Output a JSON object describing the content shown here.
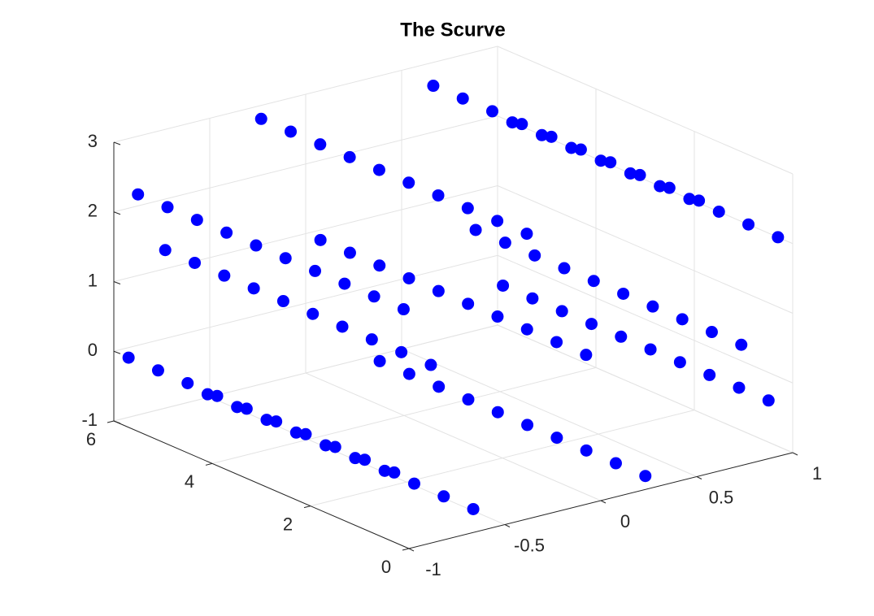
{
  "chart_data": {
    "type": "scatter3d",
    "title": "The Scurve",
    "xlim": [
      -1,
      1
    ],
    "ylim": [
      0,
      6
    ],
    "zlim": [
      -1,
      3
    ],
    "xticks": [
      -1,
      -0.5,
      0,
      0.5,
      1
    ],
    "yticks": [
      0,
      2,
      4,
      6
    ],
    "zticks": [
      -1,
      0,
      1,
      2,
      3
    ],
    "grid": true,
    "series": [
      {
        "color": "#0000ff",
        "x": [
          1,
          0.588,
          -0.309,
          -0.951,
          -0.809,
          0,
          0.809,
          0.951,
          0.309,
          -0.588,
          -1,
          1,
          0.588,
          -0.309,
          -0.951,
          -0.809,
          0,
          0.809,
          0.951,
          0.309,
          -0.588,
          -1,
          1,
          0.588,
          -0.309,
          -0.951,
          -0.809,
          0,
          0.809,
          0.951,
          0.309,
          -0.588,
          -1,
          1,
          0.588,
          -0.309,
          -0.951,
          -0.809,
          0,
          0.809,
          0.951,
          0.309,
          -0.588,
          -1,
          1,
          0.588,
          -0.309,
          -0.951,
          -0.809,
          0,
          0.809,
          0.951,
          0.309,
          -0.588,
          -1,
          1,
          0.588,
          -0.309,
          -0.951,
          -0.809,
          0,
          0.809,
          0.951,
          0.309,
          -0.588,
          -1,
          1,
          0.588,
          -0.309,
          -0.951,
          -0.809,
          0,
          0.809,
          0.951,
          0.309,
          -0.588,
          -1,
          1,
          0.588,
          -0.309,
          -0.951,
          -0.809,
          0,
          0.809,
          0.951,
          0.309,
          -0.588,
          -1,
          1,
          0.588,
          -0.309,
          -0.951,
          -0.809,
          0,
          0.809,
          0.951,
          0.309,
          -0.588,
          -1,
          1,
          0.588,
          -0.309,
          -0.951,
          -0.809,
          0,
          0.809,
          0.951,
          0.309,
          -0.588,
          -1
        ],
        "y": [
          0.3,
          0.3,
          0.3,
          0.3,
          0.3,
          0.3,
          0.3,
          0.3,
          0.3,
          0.3,
          0.3,
          0.9,
          0.9,
          0.9,
          0.9,
          0.9,
          0.9,
          0.9,
          0.9,
          0.9,
          0.9,
          0.9,
          1.5,
          1.5,
          1.5,
          1.5,
          1.5,
          1.5,
          1.5,
          1.5,
          1.5,
          1.5,
          1.5,
          2.1,
          2.1,
          2.1,
          2.1,
          2.1,
          2.1,
          2.1,
          2.1,
          2.1,
          2.1,
          2.1,
          2.7,
          2.7,
          2.7,
          2.7,
          2.7,
          2.7,
          2.7,
          2.7,
          2.7,
          2.7,
          2.7,
          3.3,
          3.3,
          3.3,
          3.3,
          3.3,
          3.3,
          3.3,
          3.3,
          3.3,
          3.3,
          3.3,
          3.9,
          3.9,
          3.9,
          3.9,
          3.9,
          3.9,
          3.9,
          3.9,
          3.9,
          3.9,
          3.9,
          4.5,
          4.5,
          4.5,
          4.5,
          4.5,
          4.5,
          4.5,
          4.5,
          4.5,
          4.5,
          4.5,
          5.1,
          5.1,
          5.1,
          5.1,
          5.1,
          5.1,
          5.1,
          5.1,
          5.1,
          5.1,
          5.1,
          5.7,
          5.7,
          5.7,
          5.7,
          5.7,
          5.7,
          5.7,
          5.7,
          5.7,
          5.7,
          5.7
        ],
        "z": [
          2,
          2.809,
          2.951,
          2.309,
          1.412,
          1,
          0.588,
          -0.309,
          -0.951,
          -0.809,
          0,
          2,
          2.809,
          2.951,
          2.309,
          1.412,
          1,
          0.588,
          -0.309,
          -0.951,
          -0.809,
          0,
          2,
          2.809,
          2.951,
          2.309,
          1.412,
          1,
          0.588,
          -0.309,
          -0.951,
          -0.809,
          0,
          2,
          2.809,
          2.951,
          2.309,
          1.412,
          1,
          0.588,
          -0.309,
          -0.951,
          -0.809,
          0,
          2,
          2.809,
          2.951,
          2.309,
          1.412,
          1,
          0.588,
          -0.309,
          -0.951,
          -0.809,
          0,
          2,
          2.809,
          2.951,
          2.309,
          1.412,
          1,
          0.588,
          -0.309,
          -0.951,
          -0.809,
          0,
          2,
          2.809,
          2.951,
          2.309,
          1.412,
          1,
          0.588,
          -0.309,
          -0.951,
          -0.809,
          0,
          2,
          2.809,
          2.951,
          2.309,
          1.412,
          1,
          0.588,
          -0.309,
          -0.951,
          -0.809,
          0,
          2,
          2.809,
          2.951,
          2.309,
          1.412,
          1,
          0.588,
          -0.309,
          -0.951,
          -0.809,
          0,
          2,
          2.809,
          2.951,
          2.309,
          1.412,
          1,
          0.588,
          -0.309,
          -0.951,
          -0.809,
          0
        ]
      }
    ]
  }
}
